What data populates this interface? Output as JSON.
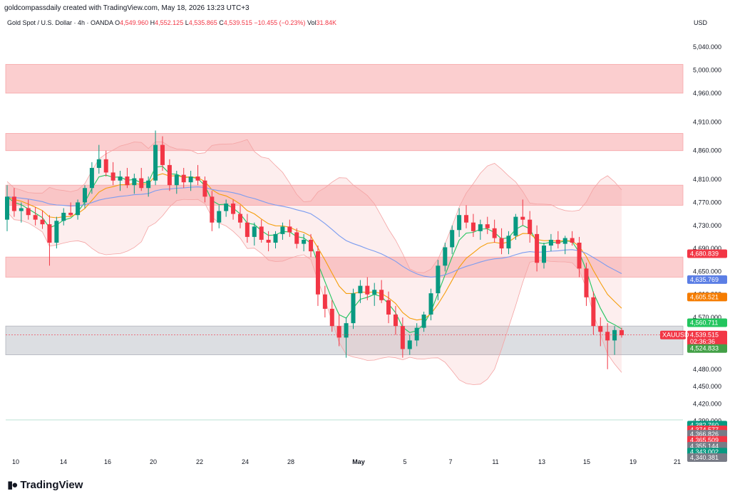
{
  "header": {
    "credit": "goldcompassdaily created with TradingView.com, May 18, 2026 13:23 UTC+3",
    "symbol": "Gold Spot / U.S. Dollar · 4h · OANDA",
    "o_label": "O",
    "o_value": "4,549.960",
    "h_label": "H",
    "h_value": "4,552.125",
    "l_label": "L",
    "l_value": "4,535.865",
    "c_label": "C",
    "c_value": "4,539.515",
    "change": "−10.455 (−0.23%)",
    "vol_label": "Vol",
    "vol_value": "31.84K",
    "currency": "USD"
  },
  "brand": {
    "name": "TradingView",
    "logo_icon": "tradingview-logo-icon"
  },
  "colors": {
    "up": "#089981",
    "down": "#f23645",
    "zone": "#f7a6a8",
    "grey_zone": "#b2b5be",
    "ema_fast": "#22c55e",
    "ema_mid": "#f59e0b",
    "ema_slow": "#7b9cf0",
    "band": "#f4a3a3"
  },
  "chart_data": {
    "type": "candlestick",
    "timeframe": "4h",
    "ylim": [
      4330,
      5070
    ],
    "y_ticks": [
      "5,040.000",
      "5,000.000",
      "4,960.000",
      "4,910.000",
      "4,860.000",
      "4,810.000",
      "4,770.000",
      "4,730.000",
      "4,690.000",
      "4,650.000",
      "4,610.000",
      "4,570.000",
      "4,530.000",
      "4,480.000",
      "4,450.000",
      "4,420.000",
      "4,390.000"
    ],
    "x_ticks": [
      "10",
      "14",
      "16",
      "20",
      "22",
      "24",
      "28",
      "May",
      "5",
      "7",
      "11",
      "13",
      "15",
      "19",
      "21"
    ],
    "price_tags": [
      {
        "label": "4,680.839",
        "value": 4680.839,
        "color": "#f23645"
      },
      {
        "label": "4,635.769",
        "value": 4635.769,
        "color": "#5b7ee5"
      },
      {
        "label": "4,605.521",
        "value": 4605.521,
        "color": "#f57c00"
      },
      {
        "label": "4,560.711",
        "value": 4560.711,
        "color": "#22c55e"
      },
      {
        "label": "4,539.515",
        "value": 4539.515,
        "color": "#f23645"
      },
      {
        "label": "02:36:36",
        "value": 4528,
        "color": "#f23645"
      },
      {
        "label": "4,524.833",
        "value": 4516,
        "color": "#43a047"
      },
      {
        "label": "4,382.760",
        "value": 4382.76,
        "color": "#089981"
      },
      {
        "label": "4,374.577",
        "value": 4374.577,
        "color": "#f23645"
      },
      {
        "label": "4,366.826",
        "value": 4366.826,
        "color": "#787b86"
      },
      {
        "label": "4,365.509",
        "value": 4356.3,
        "color": "#f23645"
      },
      {
        "label": "4,355.144",
        "value": 4346.1,
        "color": "#787b86"
      },
      {
        "label": "4,343.002",
        "value": 4335.9,
        "color": "#089981"
      },
      {
        "label": "4,340.381",
        "value": 4326.3,
        "color": "#787b86"
      }
    ],
    "symbol_tag": "XAUUSD",
    "zones": [
      {
        "from": 4960,
        "to": 5010,
        "color": "red"
      },
      {
        "from": 4860,
        "to": 4890,
        "color": "red"
      },
      {
        "from": 4765,
        "to": 4800,
        "color": "red"
      },
      {
        "from": 4640,
        "to": 4675,
        "color": "red"
      },
      {
        "from": 4505,
        "to": 4555,
        "color": "grey"
      }
    ],
    "candles": [
      [
        4740,
        4800,
        4720,
        4780
      ],
      [
        4780,
        4795,
        4745,
        4755
      ],
      [
        4755,
        4770,
        4735,
        4760
      ],
      [
        4760,
        4775,
        4740,
        4748
      ],
      [
        4748,
        4762,
        4730,
        4740
      ],
      [
        4740,
        4756,
        4724,
        4732
      ],
      [
        4732,
        4748,
        4660,
        4700
      ],
      [
        4700,
        4745,
        4690,
        4738
      ],
      [
        4738,
        4760,
        4730,
        4752
      ],
      [
        4752,
        4770,
        4745,
        4748
      ],
      [
        4748,
        4775,
        4740,
        4770
      ],
      [
        4770,
        4800,
        4760,
        4795
      ],
      [
        4795,
        4840,
        4785,
        4830
      ],
      [
        4830,
        4870,
        4820,
        4845
      ],
      [
        4845,
        4860,
        4815,
        4822
      ],
      [
        4822,
        4840,
        4800,
        4808
      ],
      [
        4808,
        4825,
        4790,
        4815
      ],
      [
        4815,
        4830,
        4795,
        4800
      ],
      [
        4800,
        4820,
        4785,
        4812
      ],
      [
        4812,
        4830,
        4790,
        4795
      ],
      [
        4795,
        4815,
        4780,
        4808
      ],
      [
        4808,
        4895,
        4800,
        4870
      ],
      [
        4870,
        4885,
        4825,
        4835
      ],
      [
        4835,
        4845,
        4790,
        4800
      ],
      [
        4800,
        4825,
        4785,
        4818
      ],
      [
        4818,
        4830,
        4795,
        4805
      ],
      [
        4805,
        4825,
        4790,
        4815
      ],
      [
        4815,
        4835,
        4800,
        4808
      ],
      [
        4808,
        4815,
        4770,
        4780
      ],
      [
        4780,
        4790,
        4720,
        4735
      ],
      [
        4735,
        4765,
        4725,
        4755
      ],
      [
        4755,
        4775,
        4745,
        4768
      ],
      [
        4768,
        4775,
        4740,
        4750
      ],
      [
        4750,
        4765,
        4725,
        4735
      ],
      [
        4735,
        4750,
        4700,
        4710
      ],
      [
        4710,
        4735,
        4695,
        4728
      ],
      [
        4728,
        4740,
        4700,
        4705
      ],
      [
        4705,
        4720,
        4685,
        4700
      ],
      [
        4700,
        4720,
        4690,
        4715
      ],
      [
        4715,
        4735,
        4705,
        4728
      ],
      [
        4728,
        4740,
        4710,
        4718
      ],
      [
        4718,
        4725,
        4690,
        4698
      ],
      [
        4698,
        4715,
        4685,
        4705
      ],
      [
        4705,
        4715,
        4675,
        4685
      ],
      [
        4685,
        4695,
        4590,
        4610
      ],
      [
        4610,
        4625,
        4570,
        4585
      ],
      [
        4585,
        4600,
        4545,
        4555
      ],
      [
        4555,
        4575,
        4520,
        4535
      ],
      [
        4535,
        4570,
        4500,
        4560
      ],
      [
        4560,
        4620,
        4550,
        4612
      ],
      [
        4612,
        4635,
        4595,
        4625
      ],
      [
        4625,
        4640,
        4600,
        4610
      ],
      [
        4610,
        4630,
        4590,
        4618
      ],
      [
        4618,
        4635,
        4595,
        4600
      ],
      [
        4600,
        4615,
        4560,
        4575
      ],
      [
        4575,
        4590,
        4540,
        4555
      ],
      [
        4555,
        4570,
        4500,
        4515
      ],
      [
        4515,
        4540,
        4505,
        4530
      ],
      [
        4530,
        4560,
        4520,
        4552
      ],
      [
        4552,
        4580,
        4545,
        4575
      ],
      [
        4575,
        4620,
        4565,
        4612
      ],
      [
        4612,
        4670,
        4600,
        4660
      ],
      [
        4660,
        4700,
        4650,
        4692
      ],
      [
        4692,
        4730,
        4680,
        4722
      ],
      [
        4722,
        4760,
        4710,
        4748
      ],
      [
        4748,
        4765,
        4725,
        4735
      ],
      [
        4735,
        4750,
        4710,
        4720
      ],
      [
        4720,
        4740,
        4705,
        4732
      ],
      [
        4732,
        4745,
        4715,
        4725
      ],
      [
        4725,
        4740,
        4700,
        4708
      ],
      [
        4708,
        4725,
        4680,
        4690
      ],
      [
        4690,
        4720,
        4680,
        4712
      ],
      [
        4712,
        4750,
        4705,
        4745
      ],
      [
        4745,
        4775,
        4730,
        4740
      ],
      [
        4740,
        4755,
        4700,
        4715
      ],
      [
        4715,
        4730,
        4650,
        4665
      ],
      [
        4665,
        4700,
        4655,
        4695
      ],
      [
        4695,
        4715,
        4685,
        4705
      ],
      [
        4705,
        4720,
        4690,
        4698
      ],
      [
        4698,
        4712,
        4680,
        4708
      ],
      [
        4708,
        4720,
        4695,
        4700
      ],
      [
        4700,
        4710,
        4640,
        4655
      ],
      [
        4655,
        4665,
        4590,
        4605
      ],
      [
        4605,
        4615,
        4540,
        4555
      ],
      [
        4555,
        4570,
        4520,
        4545
      ],
      [
        4545,
        4560,
        4480,
        4530
      ],
      [
        4530,
        4555,
        4505,
        4548
      ],
      [
        4548,
        4552,
        4535,
        4539
      ]
    ]
  }
}
